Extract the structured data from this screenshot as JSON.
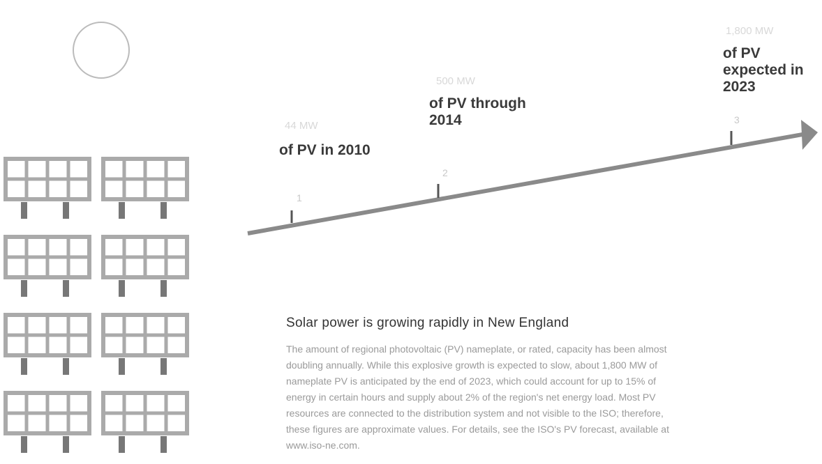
{
  "milestones": [
    {
      "amount": "44 MW",
      "label": "of PV in 2010",
      "number": "1"
    },
    {
      "amount": "500 MW",
      "label": "of PV through 2014",
      "number": "2"
    },
    {
      "amount": "1,800 MW",
      "label": "of PV expected in 2023",
      "number": "3"
    }
  ],
  "heading": "Solar power is growing rapidly in New England",
  "body": "The amount of regional photovoltaic (PV) nameplate, or rated, capacity has been almost doubling annually. While this explosive growth is expected to slow, about 1,800 MW of nameplate PV is anticipated by the end of 2023, which could account for up to 15% of energy in certain hours and supply about 2% of the region's net energy load. Most PV resources are connected to the distribution system and not visible to the ISO; therefore, these figures are approximate values. For details, see the ISO's PV forecast, available at www.iso-ne.com."
}
